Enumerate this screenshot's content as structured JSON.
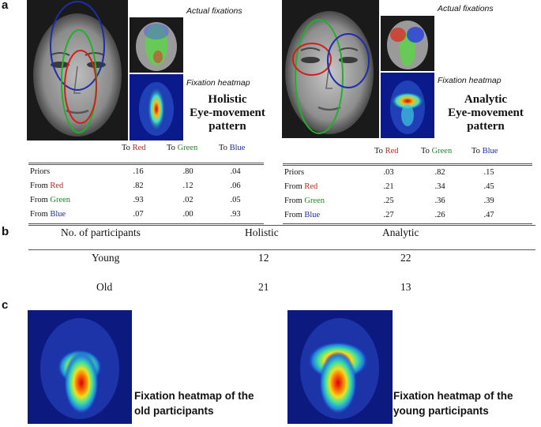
{
  "panels": {
    "a": "a",
    "b": "b",
    "c": "c"
  },
  "holistic": {
    "actual_label": "Actual fixations",
    "heatmap_label": "Fixation heatmap",
    "title_line1": "Holistic",
    "title_line2": "Eye-movement",
    "title_line3": "pattern",
    "col_headers": [
      {
        "prefix": "To",
        "color_word": "Red"
      },
      {
        "prefix": "To",
        "color_word": "Green"
      },
      {
        "prefix": "To",
        "color_word": "Blue"
      }
    ],
    "rows": [
      {
        "prefix": "Priors",
        "color_word": "",
        "values": [
          ".16",
          ".80",
          ".04"
        ]
      },
      {
        "prefix": "From",
        "color_word": "Red",
        "values": [
          ".82",
          ".12",
          ".06"
        ]
      },
      {
        "prefix": "From",
        "color_word": "Green",
        "values": [
          ".93",
          ".02",
          ".05"
        ]
      },
      {
        "prefix": "From",
        "color_word": "Blue",
        "values": [
          ".07",
          ".00",
          ".93"
        ]
      }
    ]
  },
  "analytic": {
    "actual_label": "Actual fixations",
    "heatmap_label": "Fixation heatmap",
    "title_line1": "Analytic",
    "title_line2": "Eye-movement",
    "title_line3": "pattern",
    "col_headers": [
      {
        "prefix": "To",
        "color_word": "Red"
      },
      {
        "prefix": "To",
        "color_word": "Green"
      },
      {
        "prefix": "To",
        "color_word": "Blue"
      }
    ],
    "rows": [
      {
        "prefix": "Priors",
        "color_word": "",
        "values": [
          ".03",
          ".82",
          ".15"
        ]
      },
      {
        "prefix": "From",
        "color_word": "Red",
        "values": [
          ".21",
          ".34",
          ".45"
        ]
      },
      {
        "prefix": "From",
        "color_word": "Green",
        "values": [
          ".25",
          ".36",
          ".39"
        ]
      },
      {
        "prefix": "From",
        "color_word": "Blue",
        "values": [
          ".27",
          ".26",
          ".47"
        ]
      }
    ]
  },
  "participants_table": {
    "header": [
      "No. of participants",
      "Holistic",
      "Analytic"
    ],
    "rows": [
      {
        "group": "Young",
        "holistic": "12",
        "analytic": "22"
      },
      {
        "group": "Old",
        "holistic": "21",
        "analytic": "13"
      }
    ]
  },
  "heatmaps_c": {
    "old_caption_line1": "Fixation heatmap of the",
    "old_caption_line2": "old participants",
    "young_caption_line1": "Fixation heatmap of the",
    "young_caption_line2": "young participants"
  },
  "colors": {
    "red": "#c0241c",
    "green": "#1f8a2a",
    "blue": "#1e2ea8"
  }
}
